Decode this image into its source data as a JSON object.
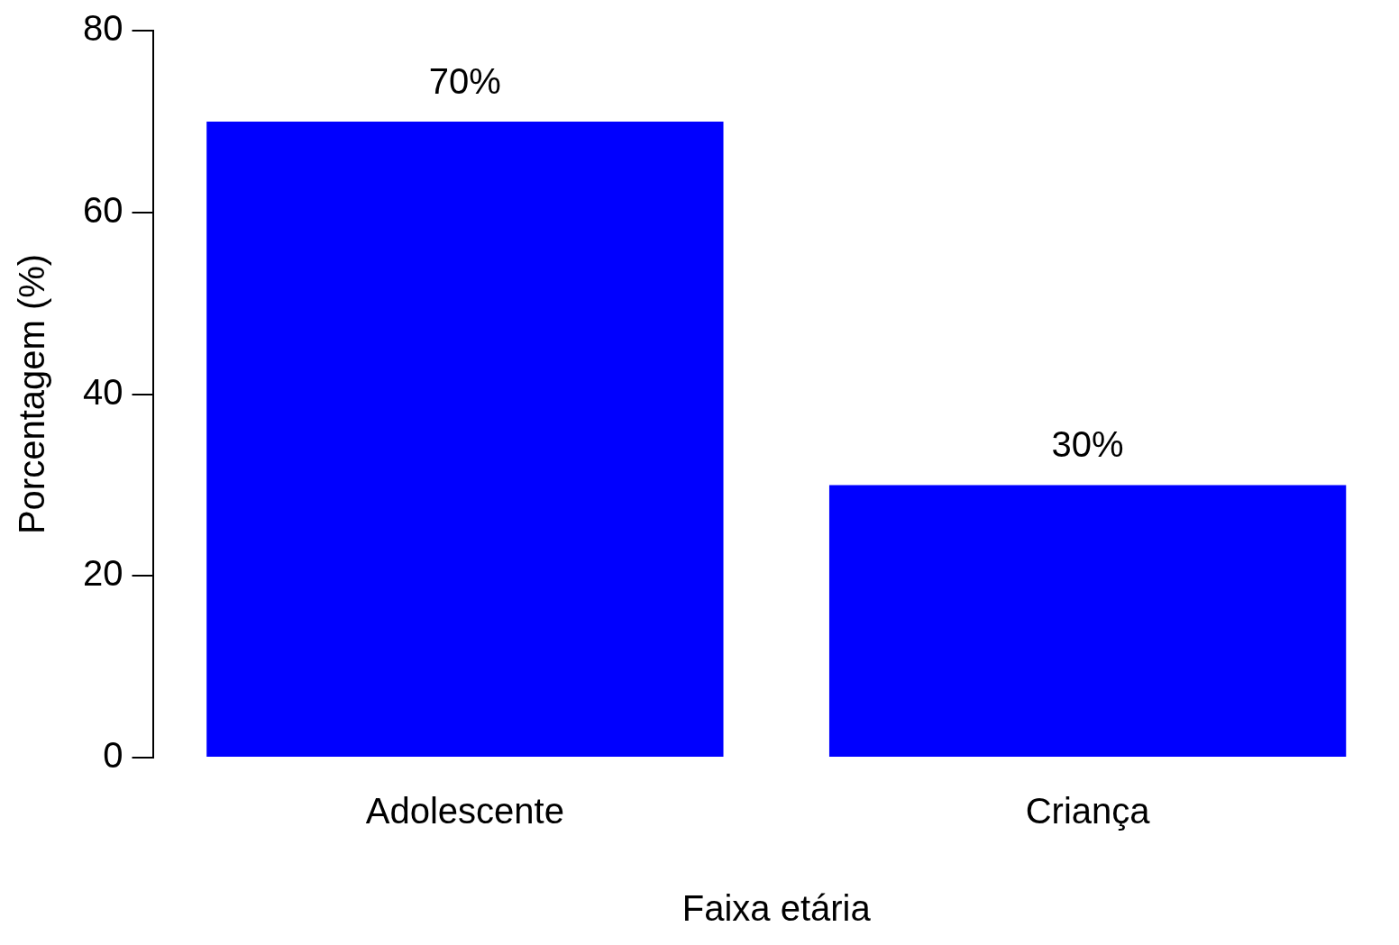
{
  "chart_data": {
    "type": "bar",
    "xlabel": "Faixa etária",
    "ylabel": "Porcentagem (%)",
    "categories": [
      "Adolescente",
      "Criança"
    ],
    "values": [
      70,
      30
    ],
    "value_labels": [
      "70%",
      "30%"
    ],
    "color": "#0000ff",
    "ylim": [
      0,
      80
    ],
    "yticks": [
      0,
      20,
      40,
      60,
      80
    ],
    "grid": false,
    "legend": false
  }
}
